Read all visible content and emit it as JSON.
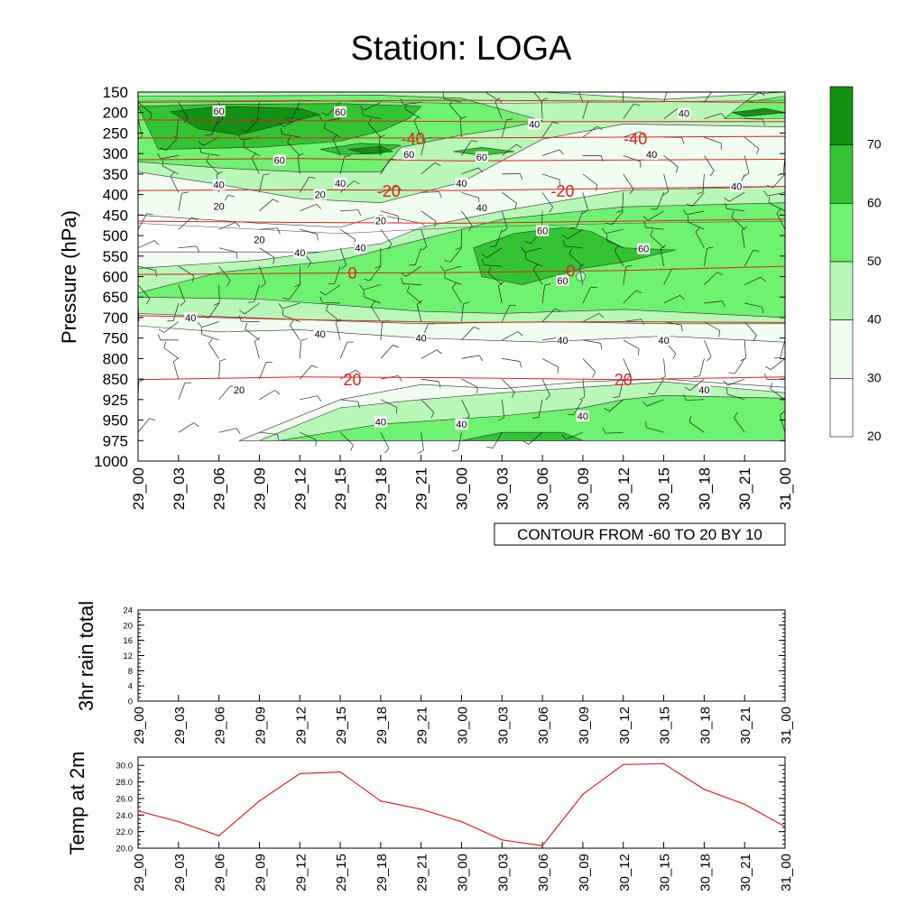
{
  "title": "Station: LOGA",
  "time_labels": [
    "29_00",
    "29_03",
    "29_06",
    "29_09",
    "29_12",
    "29_15",
    "29_18",
    "29_21",
    "30_00",
    "30_03",
    "30_06",
    "30_09",
    "30_12",
    "30_15",
    "30_18",
    "30_21",
    "31_00"
  ],
  "colors": {
    "fill_levels": [
      "#ffffff",
      "#f0fdf0",
      "#b8f7b8",
      "#6ff26f",
      "#33c433",
      "#139113"
    ],
    "temp_contour": "#e02020",
    "temp_line": "#e02020",
    "axis": "#000000"
  },
  "chart_data": [
    {
      "type": "heatmap",
      "name": "relative-humidity-profile",
      "ylabel": "Pressure (hPa)",
      "pressure_levels": [
        150,
        200,
        250,
        300,
        350,
        400,
        450,
        500,
        550,
        600,
        650,
        700,
        750,
        800,
        850,
        925,
        950,
        975,
        1000
      ],
      "ylim": [
        1000,
        150
      ],
      "colorbar_ticks": [
        70,
        60,
        50,
        40,
        30,
        20
      ],
      "contour_note": "CONTOUR FROM -60 TO 20 BY 10",
      "temperature_contour_labels": [
        {
          "value": "-40",
          "t": 6.8,
          "p": 262
        },
        {
          "value": "-40",
          "t": 12.3,
          "p": 262
        },
        {
          "value": "-20",
          "t": 6.2,
          "p": 390
        },
        {
          "value": "-20",
          "t": 10.5,
          "p": 390
        },
        {
          "value": "0",
          "t": 5.3,
          "p": 590
        },
        {
          "value": "0",
          "t": 10.7,
          "p": 585
        },
        {
          "value": "20",
          "t": 5.3,
          "p": 850
        },
        {
          "value": "20",
          "t": 12.0,
          "p": 850
        }
      ],
      "humidity_contour_labels": [
        {
          "value": "60",
          "t": 2.0,
          "p": 196
        },
        {
          "value": "60",
          "t": 5.0,
          "p": 198
        },
        {
          "value": "40",
          "t": 9.8,
          "p": 228
        },
        {
          "value": "40",
          "t": 13.5,
          "p": 202
        },
        {
          "value": "60",
          "t": 6.7,
          "p": 302
        },
        {
          "value": "60",
          "t": 3.5,
          "p": 316
        },
        {
          "value": "60",
          "t": 8.5,
          "p": 308
        },
        {
          "value": "40",
          "t": 12.7,
          "p": 302
        },
        {
          "value": "40",
          "t": 2.0,
          "p": 376
        },
        {
          "value": "40",
          "t": 5.0,
          "p": 372
        },
        {
          "value": "20",
          "t": 4.5,
          "p": 400
        },
        {
          "value": "40",
          "t": 8.0,
          "p": 372
        },
        {
          "value": "40",
          "t": 14.8,
          "p": 380
        },
        {
          "value": "20",
          "t": 2.0,
          "p": 428
        },
        {
          "value": "40",
          "t": 8.5,
          "p": 432
        },
        {
          "value": "20",
          "t": 6.0,
          "p": 464
        },
        {
          "value": "60",
          "t": 10.0,
          "p": 488
        },
        {
          "value": "20",
          "t": 3.0,
          "p": 510
        },
        {
          "value": "40",
          "t": 5.5,
          "p": 530
        },
        {
          "value": "40",
          "t": 4.0,
          "p": 542
        },
        {
          "value": "60",
          "t": 12.5,
          "p": 532
        },
        {
          "value": "60",
          "t": 10.5,
          "p": 610
        },
        {
          "value": "40",
          "t": 1.3,
          "p": 700
        },
        {
          "value": "40",
          "t": 4.5,
          "p": 740
        },
        {
          "value": "40",
          "t": 7.0,
          "p": 750
        },
        {
          "value": "40",
          "t": 10.5,
          "p": 755
        },
        {
          "value": "40",
          "t": 13.0,
          "p": 755
        },
        {
          "value": "20",
          "t": 2.5,
          "p": 890
        },
        {
          "value": "40",
          "t": 14.0,
          "p": 890
        },
        {
          "value": "40",
          "t": 6.0,
          "p": 952
        },
        {
          "value": "40",
          "t": 8.0,
          "p": 955
        },
        {
          "value": "40",
          "t": 11.0,
          "p": 945
        }
      ]
    },
    {
      "type": "line",
      "name": "rain",
      "ylabel": "3hr rain total",
      "y_ticks": [
        0,
        4,
        8,
        12,
        16,
        20,
        24
      ],
      "ylim": [
        0,
        24
      ],
      "values": []
    },
    {
      "type": "line",
      "name": "temp",
      "ylabel": "Temp at 2m",
      "y_ticks": [
        "20.0",
        "22.0",
        "24.0",
        "26.0",
        "28.0",
        "30.0"
      ],
      "ylim": [
        20.0,
        31.0
      ],
      "values": [
        24.5,
        23.2,
        21.5,
        25.7,
        29.0,
        29.2,
        25.7,
        24.7,
        23.2,
        21.0,
        20.3,
        26.5,
        30.1,
        30.2,
        27.1,
        25.3,
        22.6
      ]
    }
  ]
}
